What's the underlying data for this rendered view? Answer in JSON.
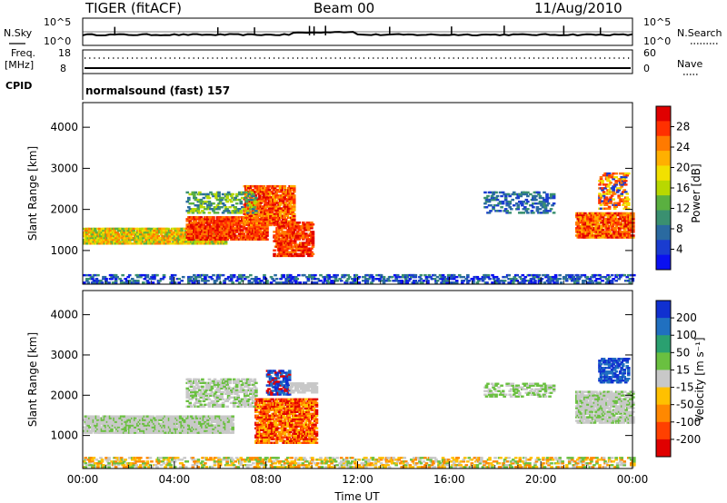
{
  "header": {
    "station": "TIGER (fitACF)",
    "beam": "Beam 00",
    "date": "11/Aug/2010"
  },
  "status_panels": {
    "nsky_label": "N.Sky",
    "nsearch_label": "N.Search",
    "noise_ticks": [
      "10^5",
      "10^0"
    ],
    "freq_label": "Freq.",
    "freq_unit": "[MHz]",
    "freq_ticks": [
      "18",
      "8"
    ],
    "nave_label": "Nave",
    "nave_ticks": [
      "60",
      "0"
    ],
    "cpid_label": "CPID",
    "cpid_value": "normalsound (fast) 157"
  },
  "chart_data": [
    {
      "type": "heatmap",
      "panel": "power",
      "ylabel": "Slant Range [km]",
      "yticks": [
        1000,
        2000,
        3000,
        4000
      ],
      "ylim": [
        180,
        4600
      ],
      "xticks": [
        "00:00",
        "04:00",
        "08:00",
        "12:00",
        "16:00",
        "20:00",
        "00:00"
      ],
      "xlim_hours": [
        0,
        24
      ],
      "colorbar": {
        "label": "Power [dB]",
        "ticks": [
          "28",
          "24",
          "20",
          "16",
          "12",
          "8",
          "4"
        ],
        "colors": [
          "#e00000",
          "#ff3000",
          "#ff7a00",
          "#ffb000",
          "#f2e000",
          "#b8d800",
          "#5ab040",
          "#3a9070",
          "#2a6aa0",
          "#1a3cd0",
          "#0a10f0"
        ]
      },
      "echo_regions": [
        {
          "t_hours": [
            0,
            6.2
          ],
          "range_km": [
            1150,
            1550
          ],
          "level": "8-20 dB"
        },
        {
          "t_hours": [
            4.5,
            10
          ],
          "range_km": [
            850,
            2600
          ],
          "level": "20-30 dB"
        },
        {
          "t_hours": [
            17.5,
            20.5
          ],
          "range_km": [
            1900,
            2400
          ],
          "level": "4-10 dB"
        },
        {
          "t_hours": [
            21.5,
            24
          ],
          "range_km": [
            1300,
            2900
          ],
          "level": "12-30 dB"
        }
      ]
    },
    {
      "type": "heatmap",
      "panel": "velocity",
      "ylabel": "Slant Range [km]",
      "yticks": [
        1000,
        2000,
        3000,
        4000
      ],
      "ylim": [
        180,
        4600
      ],
      "xticks": [
        "00:00",
        "04:00",
        "08:00",
        "12:00",
        "16:00",
        "20:00",
        "00:00"
      ],
      "xlabel": "Time UT",
      "xlim_hours": [
        0,
        24
      ],
      "colorbar": {
        "label": "Velocity [m s⁻¹]",
        "ticks": [
          "200",
          "100",
          "50",
          "15",
          "-15",
          "-50",
          "-100",
          "-200"
        ],
        "colors": [
          "#1030d0",
          "#2070c0",
          "#2aa070",
          "#6ac040",
          "#c8c8c8",
          "#ffc000",
          "#ff8800",
          "#ff4000",
          "#e00000"
        ]
      },
      "echo_regions": [
        {
          "t_hours": [
            0,
            6.5
          ],
          "range_km": [
            1050,
            1500
          ],
          "level": "-15 to 15 m/s"
        },
        {
          "t_hours": [
            7.5,
            10.2
          ],
          "range_km": [
            800,
            1900
          ],
          "level": "-50 to -200 m/s"
        },
        {
          "t_hours": [
            8,
            9
          ],
          "range_km": [
            2000,
            2600
          ],
          "level": "100 to 200 m/s"
        },
        {
          "t_hours": [
            22.5,
            23.8
          ],
          "range_km": [
            2300,
            2900
          ],
          "level": "100 to 200 m/s"
        }
      ]
    }
  ]
}
